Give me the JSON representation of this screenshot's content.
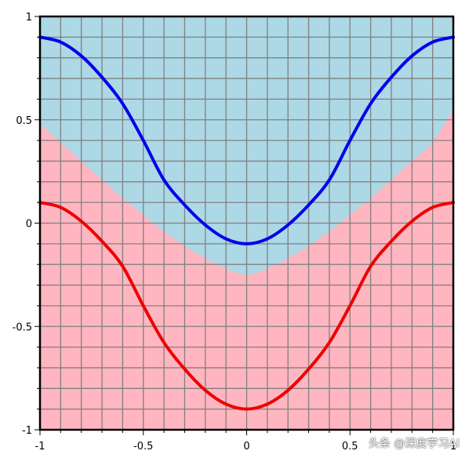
{
  "chart_data": {
    "type": "line",
    "title": "",
    "xlabel": "",
    "ylabel": "",
    "xlim": [
      -1,
      1
    ],
    "ylim": [
      -1,
      1
    ],
    "grid": true,
    "x_ticks": [
      -1,
      -0.5,
      0,
      0.5,
      1
    ],
    "x_tick_labels": [
      "-1",
      "-0.5",
      "0",
      "0.5",
      "1"
    ],
    "y_ticks": [
      1,
      0.5,
      0,
      -0.5,
      -1
    ],
    "y_tick_labels": [
      "1",
      "0.5",
      "0",
      "-0.5",
      "-1"
    ],
    "series": [
      {
        "color": "#0000ee",
        "x": [
          -1,
          -0.9,
          -0.8,
          -0.7,
          -0.6,
          -0.5,
          -0.4,
          -0.3,
          -0.2,
          -0.1,
          0,
          0.1,
          0.2,
          0.3,
          0.4,
          0.5,
          0.6,
          0.7,
          0.8,
          0.9,
          1
        ],
        "y": [
          0.9,
          0.876,
          0.809,
          0.706,
          0.578,
          0.4,
          0.209,
          0.088,
          -0.009,
          -0.076,
          -0.1,
          -0.076,
          -0.009,
          0.088,
          0.209,
          0.4,
          0.578,
          0.706,
          0.809,
          0.876,
          0.9
        ]
      },
      {
        "color": "#ee0000",
        "x": [
          -1,
          -0.9,
          -0.8,
          -0.7,
          -0.6,
          -0.5,
          -0.4,
          -0.3,
          -0.2,
          -0.1,
          0,
          0.1,
          0.2,
          0.3,
          0.4,
          0.5,
          0.6,
          0.7,
          0.8,
          0.9,
          1
        ],
        "y": [
          0.1,
          0.076,
          0.009,
          -0.088,
          -0.209,
          -0.4,
          -0.578,
          -0.706,
          -0.809,
          -0.876,
          -0.9,
          -0.876,
          -0.809,
          -0.706,
          -0.578,
          -0.4,
          -0.209,
          -0.088,
          0.009,
          0.076,
          0.1
        ]
      }
    ],
    "regions": [
      {
        "color": "#add8e6",
        "boundary_x": [
          -1,
          -0.9,
          -0.8,
          -0.7,
          -0.6,
          -0.5,
          -0.4,
          -0.3,
          -0.2,
          -0.1,
          0,
          0.1,
          0.2,
          0.3,
          0.4,
          0.5,
          0.6,
          0.7,
          0.8,
          0.9,
          1
        ],
        "boundary_y": [
          0.48,
          0.39,
          0.3,
          0.21,
          0.12,
          0.04,
          -0.04,
          -0.11,
          -0.17,
          -0.22,
          -0.25,
          -0.22,
          -0.17,
          -0.11,
          -0.04,
          0.04,
          0.12,
          0.21,
          0.3,
          0.39,
          0.55
        ],
        "fill": "above"
      },
      {
        "color": "#ffb6c1",
        "fill": "below"
      }
    ],
    "grid_color": "#808080"
  },
  "watermark": "头条 @深度学习AI"
}
